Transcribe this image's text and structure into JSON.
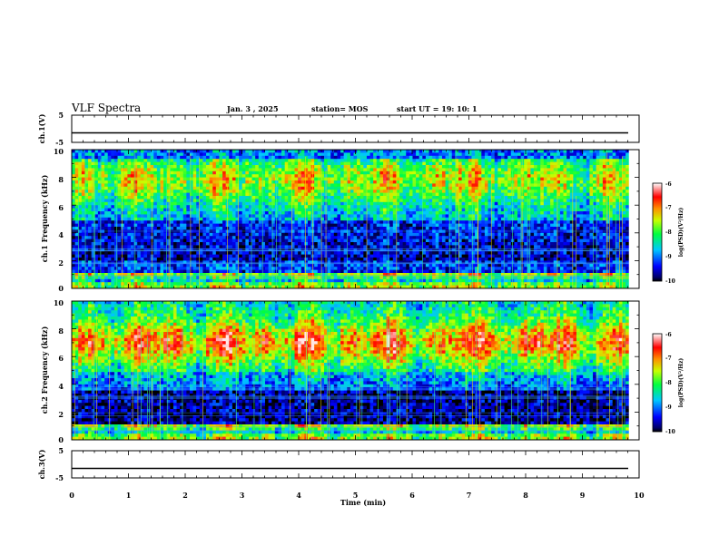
{
  "header": {
    "title": "VLF Spectra",
    "date": "Jan. 3 , 2025",
    "station": "station= MOS",
    "start": "start  UT =   19: 10: 1"
  },
  "chart_data": [
    {
      "type": "line",
      "name": "ch1-voltage",
      "ylabel": "ch.1(V)",
      "ylim": [
        -5,
        5
      ],
      "yticks": [
        "5",
        "-5"
      ],
      "xlim": [
        0,
        10
      ],
      "x": [
        0,
        10
      ],
      "values": [
        -1.5,
        -1.5
      ]
    },
    {
      "type": "heatmap",
      "name": "ch1-spectrogram",
      "ylabel": "ch.1 Frequency (kHz)",
      "ylim": [
        0,
        10
      ],
      "xlim": [
        0,
        9.82
      ],
      "yticks": [
        "0",
        "2",
        "4",
        "6",
        "8",
        "10"
      ],
      "colorbar": {
        "label": "log(PSD)(V²/Hz)",
        "range": [
          -10,
          -6
        ],
        "ticks": [
          "-6",
          "-7",
          "-8",
          "-9",
          "-10"
        ]
      }
    },
    {
      "type": "heatmap",
      "name": "ch2-spectrogram",
      "ylabel": "ch.2 Frequency (kHz)",
      "ylim": [
        0,
        10
      ],
      "xlim": [
        0,
        9.82
      ],
      "yticks": [
        "0",
        "2",
        "4",
        "6",
        "8",
        "10"
      ],
      "colorbar": {
        "label": "log(PSD)(V²/Hz)",
        "range": [
          -10,
          -6
        ],
        "ticks": [
          "-6",
          "-7",
          "-8",
          "-9",
          "-10"
        ]
      }
    },
    {
      "type": "line",
      "name": "ch3-voltage",
      "ylabel": "ch.3(V)",
      "ylim": [
        -5,
        5
      ],
      "yticks": [
        "5",
        "-5"
      ],
      "xlim": [
        0,
        10
      ],
      "x": [
        0,
        10
      ],
      "values": [
        -1.5,
        -1.5
      ]
    }
  ],
  "xaxis": {
    "label": "Time  (min)",
    "range": [
      0,
      10
    ],
    "ticks": [
      "0",
      "1",
      "2",
      "3",
      "4",
      "5",
      "6",
      "7",
      "8",
      "9",
      "10"
    ]
  }
}
